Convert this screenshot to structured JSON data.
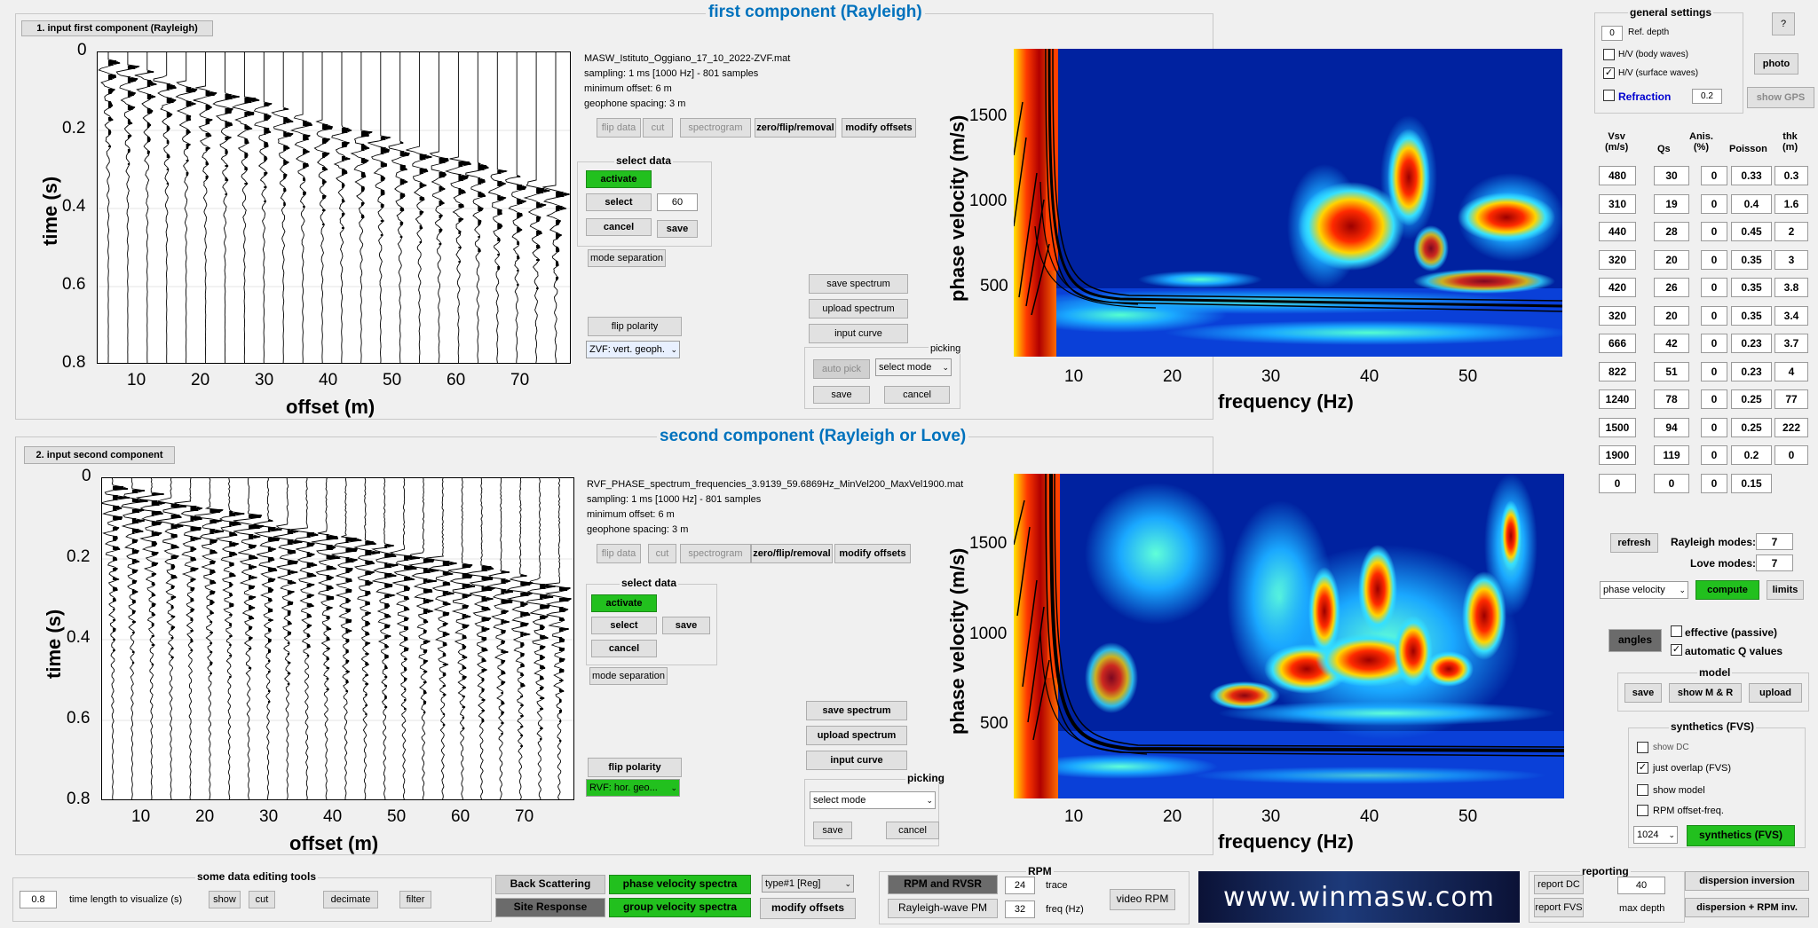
{
  "top": {
    "title": "first component (Rayleigh)",
    "input_btn": "1. input first component (Rayleigh)",
    "file": "MASW_Istituto_Oggiano_17_10_2022-ZVF.mat",
    "sampling": "sampling: 1 ms [1000 Hz] - 801 samples",
    "min_offset": "minimum offset: 6 m",
    "spacing": "geophone spacing: 3 m",
    "flip_data": "flip data",
    "cut": "cut",
    "spectrogram": "spectrogram",
    "zero_flip": "zero/flip/removal",
    "modify_offsets": "modify offsets",
    "select_data": "select data",
    "activate": "activate",
    "select": "select",
    "select_value": "60",
    "cancel": "cancel",
    "save": "save",
    "mode_separation": "mode separation",
    "flip_polarity": "flip polarity",
    "component_select": "ZVF: vert. geoph.",
    "save_spectrum": "save spectrum",
    "upload_spectrum": "upload spectrum",
    "input_curve": "input curve",
    "picking": "picking",
    "auto_pick": "auto pick",
    "select_mode": "select mode",
    "pick_save": "save",
    "pick_cancel": "cancel"
  },
  "bottom": {
    "title": "second component (Rayleigh or Love)",
    "input_btn": "2. input second component",
    "file": "RVF_PHASE_spectrum_frequencies_3.9139_59.6869Hz_MinVel200_MaxVel1900.mat",
    "sampling": "sampling: 1 ms [1000 Hz] - 801 samples",
    "min_offset": "minimum offset: 6 m",
    "spacing": "geophone spacing: 3 m",
    "flip_data": "flip data",
    "cut": "cut",
    "spectrogram": "spectrogram",
    "zero_flip": "zero/flip/removal",
    "modify_offsets": "modify offsets",
    "select_data": "select data",
    "activate": "activate",
    "select": "select",
    "cancel": "cancel",
    "save": "save",
    "mode_separation": "mode separation",
    "flip_polarity": "flip polarity",
    "component_select": "RVF: hor. geo...",
    "save_spectrum": "save spectrum",
    "upload_spectrum": "upload spectrum",
    "input_curve": "input curve",
    "picking": "picking",
    "select_mode": "select mode",
    "pick_save": "save",
    "pick_cancel": "cancel"
  },
  "seis_axes": {
    "ylabel": "time (s)",
    "xlabel": "offset (m)",
    "yticks": [
      "0",
      "0.2",
      "0.4",
      "0.6",
      "0.8"
    ],
    "xticks": [
      "10",
      "20",
      "30",
      "40",
      "50",
      "60",
      "70"
    ]
  },
  "spec_axes": {
    "ylabel": "phase velocity (m/s)",
    "xlabel": "frequency (Hz)",
    "yticks": [
      "1500",
      "1000",
      "500"
    ],
    "xticks": [
      "10",
      "20",
      "30",
      "40",
      "50"
    ]
  },
  "general": {
    "title": "general settings",
    "ref_depth_value": "0",
    "ref_depth": "Ref. depth",
    "hv_body": "H/V (body waves)",
    "hv_surface": "H/V (surface waves)",
    "refraction": "Refraction",
    "refraction_value": "0.2",
    "help": "?",
    "photo": "photo",
    "show_gps": "show GPS"
  },
  "model_table": {
    "headers": [
      [
        "Vsv",
        "(m/s)"
      ],
      [
        "Qs",
        ""
      ],
      [
        "Anis.",
        "(%)"
      ],
      [
        "Poisson",
        ""
      ],
      [
        "thk",
        "(m)"
      ]
    ],
    "rows": [
      [
        "480",
        "30",
        "0",
        "0.33",
        "0.3"
      ],
      [
        "310",
        "19",
        "0",
        "0.4",
        "1.6"
      ],
      [
        "440",
        "28",
        "0",
        "0.45",
        "2"
      ],
      [
        "320",
        "20",
        "0",
        "0.35",
        "3"
      ],
      [
        "420",
        "26",
        "0",
        "0.35",
        "3.8"
      ],
      [
        "320",
        "20",
        "0",
        "0.35",
        "3.4"
      ],
      [
        "666",
        "42",
        "0",
        "0.23",
        "3.7"
      ],
      [
        "822",
        "51",
        "0",
        "0.23",
        "4"
      ],
      [
        "1240",
        "78",
        "0",
        "0.25",
        "77"
      ],
      [
        "1500",
        "94",
        "0",
        "0.25",
        "222"
      ],
      [
        "1900",
        "119",
        "0",
        "0.2",
        "0"
      ],
      [
        "0",
        "0",
        "0",
        "0.15",
        ""
      ]
    ]
  },
  "modes": {
    "refresh": "refresh",
    "rayleigh_label": "Rayleigh modes:",
    "rayleigh_value": "7",
    "love_label": "Love modes:",
    "love_value": "7",
    "velocity_type": "phase velocity",
    "compute": "compute",
    "limits": "limits",
    "angles": "angles",
    "effective": "effective (passive)",
    "auto_q": "automatic Q values"
  },
  "model_group": {
    "title": "model",
    "save": "save",
    "show_mr": "show M & R",
    "upload": "upload"
  },
  "synthetics": {
    "title": "synthetics (FVS)",
    "show_dc": "show DC",
    "just_overlap": "just overlap (FVS)",
    "show_model": "show model",
    "rpm_offset": "RPM offset-freq.",
    "samples": "1024",
    "synth_btn": "synthetics (FVS)"
  },
  "tools": {
    "title": "some data editing tools",
    "time_value": "0.8",
    "time_label": "time length to visualize (s)",
    "show": "show",
    "cut": "cut",
    "decimate": "decimate",
    "filter": "filter"
  },
  "analysis": {
    "back_scattering": "Back Scattering",
    "site_response": "Site Response",
    "phase_spectra": "phase velocity spectra",
    "group_spectra": "group velocity spectra",
    "type": "type#1 [Reg]",
    "modify_offsets": "modify offsets"
  },
  "rpm": {
    "title": "RPM",
    "rpm_rvsr": "RPM and RVSR",
    "rayleigh_pm": "Rayleigh-wave PM",
    "trace_value": "24",
    "trace_label": "trace",
    "freq_value": "32",
    "freq_label": "freq (Hz)",
    "video": "video RPM"
  },
  "logo_text": "www.winmasw.com",
  "reporting": {
    "title": "reporting",
    "report_dc": "report DC",
    "report_fvs": "report FVS",
    "depth_value": "40",
    "depth_label": "max depth",
    "dispersion_inv": "dispersion inversion",
    "dispersion_rpm": "dispersion + RPM inv."
  }
}
